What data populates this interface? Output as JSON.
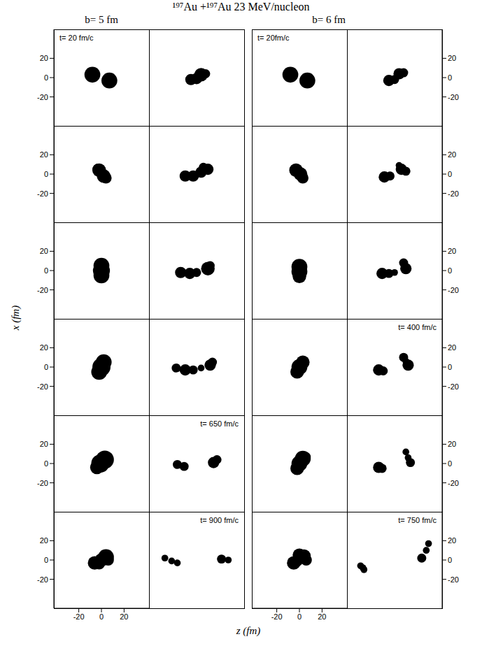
{
  "chart_data": {
    "type": "scatter",
    "title": "¹⁹⁷Au +¹⁹⁷Au 23 MeV/nucleon",
    "x_label": "z (fm)",
    "y_label": "x (fm)",
    "xlim": [
      -42,
      42
    ],
    "ylim": [
      -50,
      50
    ],
    "xticks": [
      -20,
      0,
      20
    ],
    "yticks": [
      -20,
      0,
      20
    ],
    "color": "#000000",
    "groups": [
      {
        "title": "b= 5 fm",
        "panels": [
          {
            "annotation": "t= 20 fm/c",
            "points": [
              {
                "x": -8,
                "y": 3,
                "r": 7
              },
              {
                "x": 7,
                "y": -3,
                "r": 7
              }
            ]
          },
          {
            "points": [
              {
                "x": -5,
                "y": -2,
                "r": 5
              },
              {
                "x": 0,
                "y": -1,
                "r": 5
              },
              {
                "x": 4,
                "y": 3,
                "r": 6
              },
              {
                "x": 8,
                "y": 4,
                "r": 4
              }
            ]
          },
          {
            "points": [
              {
                "x": -3,
                "y": 5,
                "r": 5
              },
              {
                "x": -2,
                "y": 4,
                "r": 6
              },
              {
                "x": 2,
                "y": -2,
                "r": 6
              },
              {
                "x": 4,
                "y": -4,
                "r": 5
              }
            ]
          },
          {
            "points": [
              {
                "x": -10,
                "y": -2,
                "r": 5
              },
              {
                "x": -3,
                "y": -2,
                "r": 5
              },
              {
                "x": 4,
                "y": 2,
                "r": 5
              },
              {
                "x": 10,
                "y": 5,
                "r": 5
              },
              {
                "x": 6,
                "y": 7,
                "r": 4
              }
            ]
          },
          {
            "points": [
              {
                "x": 0,
                "y": 5,
                "r": 7
              },
              {
                "x": 0,
                "y": 0,
                "r": 7.5
              },
              {
                "x": 0,
                "y": -5,
                "r": 7
              }
            ]
          },
          {
            "points": [
              {
                "x": -14,
                "y": -2,
                "r": 5
              },
              {
                "x": -6,
                "y": -3,
                "r": 5
              },
              {
                "x": 0,
                "y": -2,
                "r": 4
              },
              {
                "x": 10,
                "y": 2,
                "r": 6
              },
              {
                "x": 12,
                "y": 5,
                "r": 4
              }
            ]
          },
          {
            "points": [
              {
                "x": 2,
                "y": 5,
                "r": 7
              },
              {
                "x": 0,
                "y": 0,
                "r": 8
              },
              {
                "x": -2,
                "y": -5,
                "r": 7
              }
            ]
          },
          {
            "points": [
              {
                "x": -18,
                "y": -1,
                "r": 4
              },
              {
                "x": -10,
                "y": -3,
                "r": 5
              },
              {
                "x": -3,
                "y": -3,
                "r": 4
              },
              {
                "x": 4,
                "y": -1,
                "r": 3
              },
              {
                "x": 12,
                "y": 2,
                "r": 5
              },
              {
                "x": 14,
                "y": 5,
                "r": 4
              }
            ]
          },
          {
            "points": [
              {
                "x": 3,
                "y": 4,
                "r": 8
              },
              {
                "x": -1,
                "y": 0,
                "r": 8
              },
              {
                "x": -4,
                "y": -4,
                "r": 6
              }
            ]
          },
          {
            "annotation": "t= 650 fm/c",
            "points": [
              {
                "x": -17,
                "y": -1,
                "r": 4
              },
              {
                "x": -11,
                "y": -3,
                "r": 4
              },
              {
                "x": 15,
                "y": 1,
                "r": 5
              },
              {
                "x": 18,
                "y": 4,
                "r": 4
              }
            ]
          },
          {
            "points": [
              {
                "x": -6,
                "y": -3,
                "r": 6
              },
              {
                "x": 4,
                "y": 3,
                "r": 7
              },
              {
                "x": 0,
                "y": 0,
                "r": 6
              },
              {
                "x": -2,
                "y": -4,
                "r": 5
              },
              {
                "x": 6,
                "y": 0,
                "r": 5
              }
            ]
          },
          {
            "annotation": "t= 900 fm/c",
            "points": [
              {
                "x": -28,
                "y": 2,
                "r": 3
              },
              {
                "x": -22,
                "y": -1,
                "r": 3
              },
              {
                "x": -17,
                "y": -3,
                "r": 3
              },
              {
                "x": 22,
                "y": 1,
                "r": 4
              },
              {
                "x": 28,
                "y": 0,
                "r": 3
              }
            ]
          }
        ]
      },
      {
        "title": "b= 6 fm",
        "panels": [
          {
            "annotation": "t= 20fm/c",
            "points": [
              {
                "x": -8,
                "y": 3,
                "r": 7
              },
              {
                "x": 7,
                "y": -3,
                "r": 7
              }
            ]
          },
          {
            "points": [
              {
                "x": -5,
                "y": -3,
                "r": 5
              },
              {
                "x": 0,
                "y": -2,
                "r": 4
              },
              {
                "x": 4,
                "y": 4,
                "r": 5
              },
              {
                "x": 8,
                "y": 5,
                "r": 4
              }
            ]
          },
          {
            "points": [
              {
                "x": -3,
                "y": 4,
                "r": 6
              },
              {
                "x": 1,
                "y": 0,
                "r": 6
              },
              {
                "x": 3,
                "y": -4,
                "r": 5
              }
            ]
          },
          {
            "points": [
              {
                "x": -9,
                "y": -3,
                "r": 5
              },
              {
                "x": -4,
                "y": -2,
                "r": 4
              },
              {
                "x": 6,
                "y": 5,
                "r": 5
              },
              {
                "x": 10,
                "y": 3,
                "r": 4
              },
              {
                "x": 4,
                "y": 9,
                "r": 3
              }
            ]
          },
          {
            "points": [
              {
                "x": 0,
                "y": 4,
                "r": 7
              },
              {
                "x": 0,
                "y": -1,
                "r": 7
              },
              {
                "x": 0,
                "y": -6,
                "r": 6
              }
            ]
          },
          {
            "points": [
              {
                "x": -11,
                "y": -3,
                "r": 5
              },
              {
                "x": -5,
                "y": -3,
                "r": 4
              },
              {
                "x": 0,
                "y": -2,
                "r": 3
              },
              {
                "x": 8,
                "y": 8,
                "r": 4
              },
              {
                "x": 10,
                "y": 2,
                "r": 5
              }
            ]
          },
          {
            "points": [
              {
                "x": 3,
                "y": 5,
                "r": 6
              },
              {
                "x": 0,
                "y": 0,
                "r": 7
              },
              {
                "x": -2,
                "y": -5,
                "r": 6
              }
            ]
          },
          {
            "annotation": "t= 400 fm/c",
            "points": [
              {
                "x": -14,
                "y": -3,
                "r": 5
              },
              {
                "x": -10,
                "y": -4,
                "r": 4
              },
              {
                "x": 8,
                "y": 10,
                "r": 4
              },
              {
                "x": 12,
                "y": 2,
                "r": 5
              },
              {
                "x": 10,
                "y": 6,
                "r": 3
              }
            ]
          },
          {
            "points": [
              {
                "x": 3,
                "y": 5,
                "r": 7
              },
              {
                "x": 0,
                "y": 0,
                "r": 7
              },
              {
                "x": -2,
                "y": -5,
                "r": 6
              },
              {
                "x": 6,
                "y": 7,
                "r": 4
              }
            ]
          },
          {
            "points": [
              {
                "x": -14,
                "y": -4,
                "r": 5
              },
              {
                "x": -11,
                "y": -5,
                "r": 4
              },
              {
                "x": 10,
                "y": 12,
                "r": 3
              },
              {
                "x": 12,
                "y": 6,
                "r": 3
              },
              {
                "x": 14,
                "y": 1,
                "r": 4
              }
            ]
          },
          {
            "points": [
              {
                "x": -5,
                "y": -3,
                "r": 6
              },
              {
                "x": 4,
                "y": 4,
                "r": 6
              },
              {
                "x": 0,
                "y": 5,
                "r": 6
              },
              {
                "x": 6,
                "y": 0,
                "r": 5
              },
              {
                "x": -2,
                "y": -1,
                "r": 5
              }
            ]
          },
          {
            "annotation": "t= 750 fm/c",
            "points": [
              {
                "x": -30,
                "y": -6,
                "r": 3
              },
              {
                "x": -27,
                "y": -10,
                "r": 3
              },
              {
                "x": -28,
                "y": -8,
                "r": 3
              },
              {
                "x": 24,
                "y": 2,
                "r": 4
              },
              {
                "x": 28,
                "y": 10,
                "r": 3
              },
              {
                "x": 30,
                "y": 17,
                "r": 3
              }
            ]
          }
        ]
      }
    ]
  }
}
